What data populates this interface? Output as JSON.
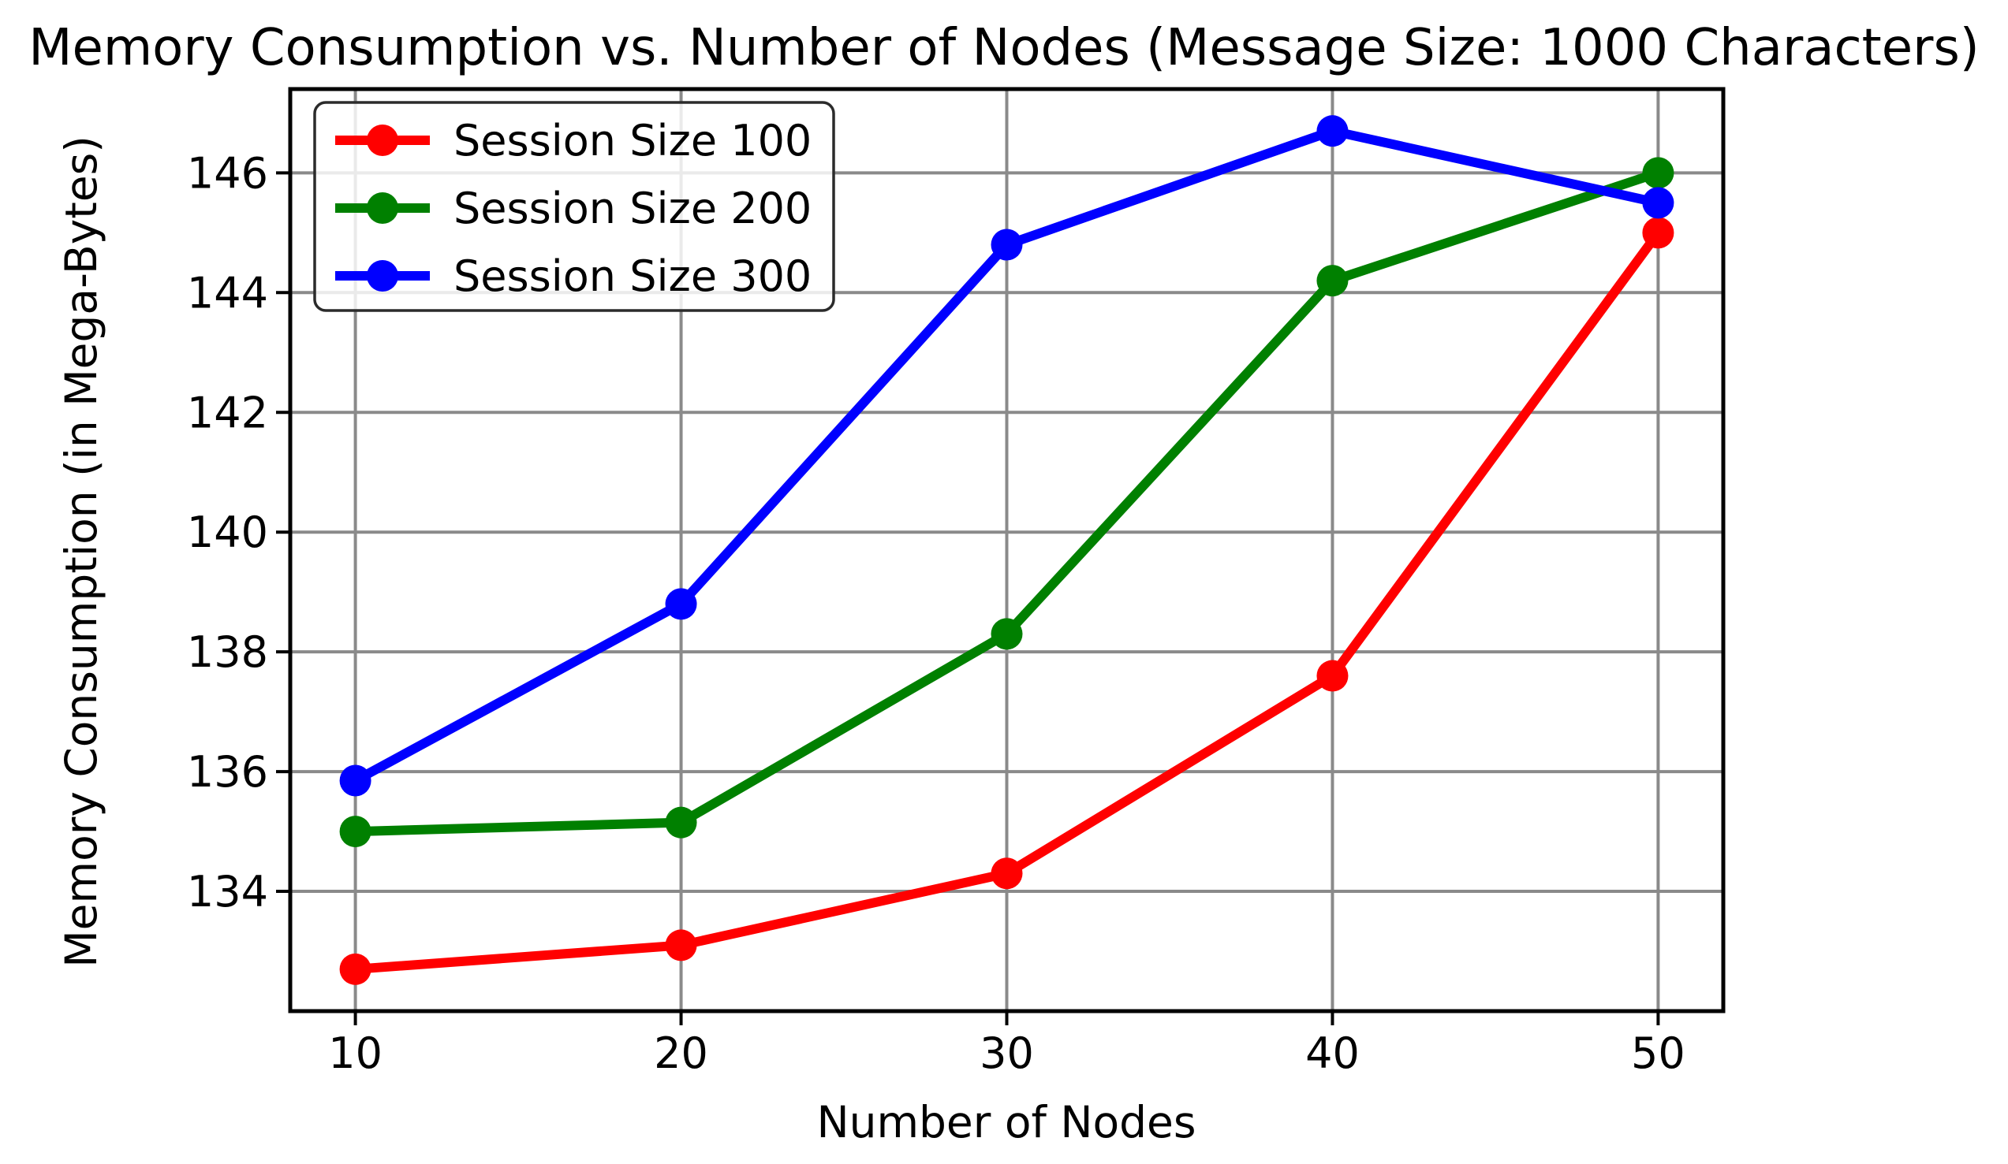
{
  "chart_data": {
    "type": "line",
    "title": "Memory Consumption vs. Number of Nodes (Message Size: 1000 Characters)",
    "xlabel": "Number of Nodes",
    "ylabel": "Memory Consumption (in Mega-Bytes)",
    "x": [
      10,
      20,
      30,
      40,
      50
    ],
    "xticks": [
      10,
      20,
      30,
      40,
      50
    ],
    "yticks": [
      134,
      136,
      138,
      140,
      142,
      144,
      146
    ],
    "xlim": [
      8,
      52
    ],
    "ylim": [
      132.0,
      147.4
    ],
    "grid": true,
    "legend_position": "upper left",
    "marker": "circle",
    "grid_color": "#8a8a8a",
    "spine_color": "#000000",
    "series": [
      {
        "name": "Session Size 100",
        "color": "#ff0000",
        "values": [
          132.7,
          133.1,
          134.3,
          137.6,
          145.0
        ]
      },
      {
        "name": "Session Size 200",
        "color": "#008000",
        "values": [
          135.0,
          135.15,
          138.3,
          144.2,
          146.0
        ]
      },
      {
        "name": "Session Size 300",
        "color": "#0000ff",
        "values": [
          135.85,
          138.8,
          144.8,
          146.7,
          145.5
        ]
      }
    ]
  }
}
